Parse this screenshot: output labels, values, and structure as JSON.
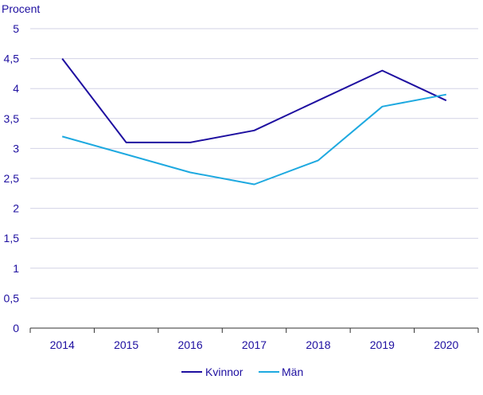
{
  "chart_data": {
    "type": "line",
    "ylabel": "Procent",
    "xlabel": "",
    "title": "",
    "x": [
      "2014",
      "2015",
      "2016",
      "2017",
      "2018",
      "2019",
      "2020"
    ],
    "ylim": [
      0,
      5
    ],
    "yticks": [
      "0",
      "0,5",
      "1",
      "1,5",
      "2",
      "2,5",
      "3",
      "3,5",
      "4",
      "4,5",
      "5"
    ],
    "grid": "horizontal",
    "legend_position": "bottom-center",
    "series": [
      {
        "name": "Kvinnor",
        "color": "#1e0fa0",
        "values": [
          4.5,
          3.1,
          3.1,
          3.3,
          3.8,
          4.3,
          3.8
        ]
      },
      {
        "name": "Män",
        "color": "#1ea9e0",
        "values": [
          3.2,
          2.9,
          2.6,
          2.4,
          2.8,
          3.7,
          3.9
        ]
      }
    ]
  }
}
